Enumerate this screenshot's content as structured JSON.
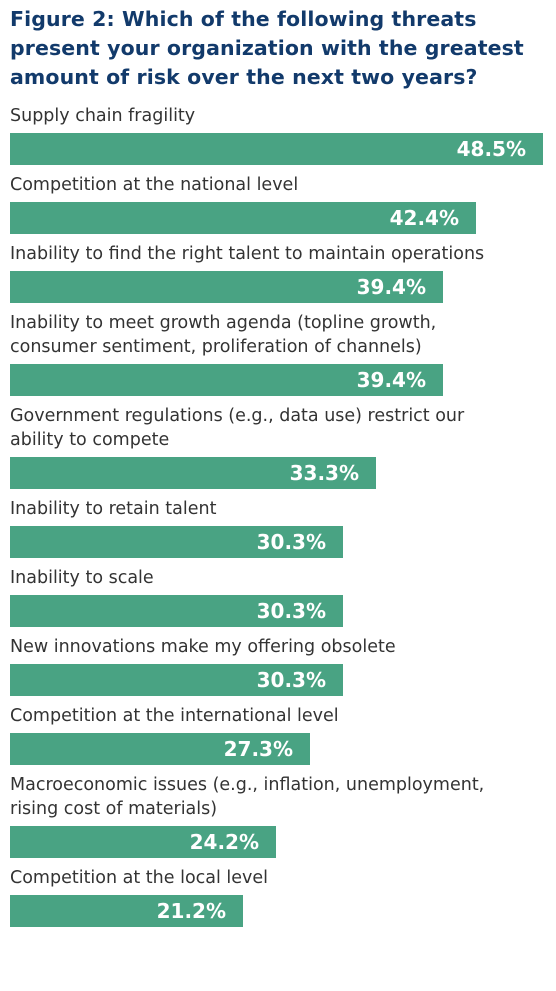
{
  "chart_data": {
    "type": "bar",
    "orientation": "horizontal",
    "title": "Figure 2: Which of the following threats present your organization with the greatest amount of risk over the next two years?",
    "categories": [
      [
        "Supply chain fragility"
      ],
      [
        "Competition at the national level"
      ],
      [
        "Inability to find the right talent to maintain operations"
      ],
      [
        "Inability to meet growth agenda (topline growth,",
        "consumer sentiment, proliferation of channels)"
      ],
      [
        "Government regulations (e.g., data use) restrict our",
        "ability to compete"
      ],
      [
        "Inability to retain talent"
      ],
      [
        "Inability to scale"
      ],
      [
        "New innovations make my offering obsolete"
      ],
      [
        "Competition at the international level"
      ],
      [
        "Macroeconomic issues (e.g., inflation, unemployment,",
        "rising cost of materials)"
      ],
      [
        "Competition at the local level"
      ]
    ],
    "values": [
      48.5,
      42.4,
      39.4,
      39.4,
      33.3,
      30.3,
      30.3,
      30.3,
      27.3,
      24.2,
      21.2
    ],
    "value_labels": [
      "48.5%",
      "42.4%",
      "39.4%",
      "39.4%",
      "33.3%",
      "30.3%",
      "30.3%",
      "30.3%",
      "27.3%",
      "24.2%",
      "21.2%"
    ],
    "xlim": [
      0,
      48.5
    ],
    "bar_color": "#49a383",
    "title_color": "#123a6b",
    "grid": false,
    "legend": "none"
  }
}
